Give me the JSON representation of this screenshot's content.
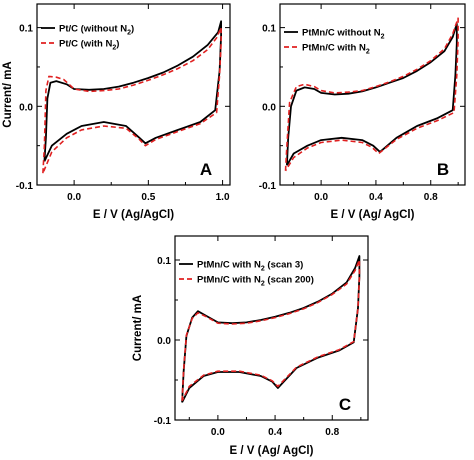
{
  "chart_data": [
    {
      "type": "line",
      "panel_letter": "A",
      "xlabel": "E / V (Ag/AgCl)",
      "ylabel": "Current/ mA",
      "xlim": [
        -0.25,
        1.05
      ],
      "ylim": [
        -0.1,
        0.13
      ],
      "xticks": [
        0.0,
        0.5,
        1.0
      ],
      "yticks": [
        -0.1,
        0.0,
        0.1
      ],
      "xtick_labels": [
        "0.0",
        "0.5",
        "1.0"
      ],
      "ytick_labels": [
        "-0.1",
        "0.0",
        "0.1"
      ],
      "legend_position": "top-left",
      "grid": false,
      "series": [
        {
          "name": "Pt/C (without N2)",
          "legend_main": "Pt/C (without N",
          "legend_sub": "2",
          "legend_tail": ")",
          "color": "#000000",
          "dash": "solid",
          "points": [
            [
              -0.2,
              -0.07
            ],
            [
              -0.19,
              -0.04
            ],
            [
              -0.18,
              0.01
            ],
            [
              -0.16,
              0.03
            ],
            [
              -0.12,
              0.032
            ],
            [
              -0.05,
              0.028
            ],
            [
              0.0,
              0.022
            ],
            [
              0.1,
              0.021
            ],
            [
              0.2,
              0.022
            ],
            [
              0.3,
              0.025
            ],
            [
              0.4,
              0.03
            ],
            [
              0.5,
              0.036
            ],
            [
              0.6,
              0.043
            ],
            [
              0.7,
              0.052
            ],
            [
              0.8,
              0.063
            ],
            [
              0.9,
              0.078
            ],
            [
              0.97,
              0.094
            ],
            [
              0.99,
              0.108
            ],
            [
              0.99,
              0.09
            ],
            [
              0.98,
              0.045
            ],
            [
              0.95,
              -0.005
            ],
            [
              0.85,
              -0.02
            ],
            [
              0.7,
              -0.03
            ],
            [
              0.55,
              -0.04
            ],
            [
              0.48,
              -0.047
            ],
            [
              0.44,
              -0.04
            ],
            [
              0.35,
              -0.025
            ],
            [
              0.2,
              -0.02
            ],
            [
              0.05,
              -0.025
            ],
            [
              -0.05,
              -0.035
            ],
            [
              -0.15,
              -0.05
            ],
            [
              -0.2,
              -0.07
            ]
          ]
        },
        {
          "name": "Pt/C (with N2)",
          "legend_main": "Pt/C (with N",
          "legend_sub": "2",
          "legend_tail": ")",
          "color": "#e02020",
          "dash": "dashed",
          "points": [
            [
              -0.21,
              -0.085
            ],
            [
              -0.2,
              -0.05
            ],
            [
              -0.19,
              0.02
            ],
            [
              -0.17,
              0.038
            ],
            [
              -0.12,
              0.037
            ],
            [
              -0.07,
              0.034
            ],
            [
              0.0,
              0.022
            ],
            [
              0.1,
              0.019
            ],
            [
              0.2,
              0.02
            ],
            [
              0.3,
              0.022
            ],
            [
              0.4,
              0.027
            ],
            [
              0.5,
              0.033
            ],
            [
              0.6,
              0.04
            ],
            [
              0.7,
              0.048
            ],
            [
              0.8,
              0.058
            ],
            [
              0.9,
              0.072
            ],
            [
              0.96,
              0.087
            ],
            [
              0.99,
              0.1
            ],
            [
              0.99,
              0.08
            ],
            [
              0.98,
              0.04
            ],
            [
              0.96,
              -0.008
            ],
            [
              0.85,
              -0.022
            ],
            [
              0.7,
              -0.032
            ],
            [
              0.55,
              -0.042
            ],
            [
              0.48,
              -0.05
            ],
            [
              0.44,
              -0.042
            ],
            [
              0.35,
              -0.028
            ],
            [
              0.2,
              -0.025
            ],
            [
              0.05,
              -0.03
            ],
            [
              -0.05,
              -0.04
            ],
            [
              -0.15,
              -0.058
            ],
            [
              -0.21,
              -0.085
            ]
          ]
        }
      ]
    },
    {
      "type": "line",
      "panel_letter": "B",
      "xlabel": "E / V (Ag/ AgCl)",
      "ylabel": "",
      "xlim": [
        -0.3,
        1.05
      ],
      "ylim": [
        -0.1,
        0.13
      ],
      "xticks": [
        0.0,
        0.4,
        0.8
      ],
      "yticks": [
        -0.1,
        0.0,
        0.1
      ],
      "xtick_labels": [
        "0.0",
        "0.4",
        "0.8"
      ],
      "ytick_labels": [
        "-0.1",
        "0.0",
        "0.1"
      ],
      "legend_position": "top-left",
      "grid": false,
      "series": [
        {
          "name": "PtMn/C without N2",
          "legend_main": "PtMn/C without N",
          "legend_sub": "2",
          "legend_tail": "",
          "color": "#000000",
          "dash": "solid",
          "points": [
            [
              -0.25,
              -0.075
            ],
            [
              -0.24,
              -0.04
            ],
            [
              -0.22,
              0.0
            ],
            [
              -0.18,
              0.02
            ],
            [
              -0.12,
              0.024
            ],
            [
              -0.05,
              0.022
            ],
            [
              0.0,
              0.017
            ],
            [
              0.1,
              0.015
            ],
            [
              0.2,
              0.016
            ],
            [
              0.3,
              0.019
            ],
            [
              0.4,
              0.024
            ],
            [
              0.5,
              0.03
            ],
            [
              0.6,
              0.036
            ],
            [
              0.7,
              0.045
            ],
            [
              0.8,
              0.056
            ],
            [
              0.9,
              0.07
            ],
            [
              0.96,
              0.088
            ],
            [
              0.99,
              0.105
            ],
            [
              0.99,
              0.08
            ],
            [
              0.98,
              0.04
            ],
            [
              0.96,
              -0.005
            ],
            [
              0.85,
              -0.015
            ],
            [
              0.7,
              -0.025
            ],
            [
              0.55,
              -0.04
            ],
            [
              0.43,
              -0.058
            ],
            [
              0.38,
              -0.05
            ],
            [
              0.3,
              -0.043
            ],
            [
              0.15,
              -0.04
            ],
            [
              0.0,
              -0.043
            ],
            [
              -0.1,
              -0.05
            ],
            [
              -0.2,
              -0.06
            ],
            [
              -0.25,
              -0.075
            ]
          ]
        },
        {
          "name": "PtMn/C with N2",
          "legend_main": "PtMn/C with N",
          "legend_sub": "2",
          "legend_tail": "",
          "color": "#e02020",
          "dash": "dashed",
          "points": [
            [
              -0.26,
              -0.082
            ],
            [
              -0.25,
              -0.05
            ],
            [
              -0.23,
              0.005
            ],
            [
              -0.18,
              0.025
            ],
            [
              -0.12,
              0.028
            ],
            [
              -0.05,
              0.025
            ],
            [
              0.0,
              0.02
            ],
            [
              0.1,
              0.017
            ],
            [
              0.2,
              0.018
            ],
            [
              0.3,
              0.02
            ],
            [
              0.4,
              0.025
            ],
            [
              0.5,
              0.031
            ],
            [
              0.6,
              0.038
            ],
            [
              0.7,
              0.047
            ],
            [
              0.8,
              0.058
            ],
            [
              0.9,
              0.073
            ],
            [
              0.96,
              0.092
            ],
            [
              1.0,
              0.112
            ],
            [
              1.0,
              0.085
            ],
            [
              0.99,
              0.04
            ],
            [
              0.97,
              -0.008
            ],
            [
              0.85,
              -0.018
            ],
            [
              0.7,
              -0.028
            ],
            [
              0.55,
              -0.042
            ],
            [
              0.42,
              -0.06
            ],
            [
              0.37,
              -0.052
            ],
            [
              0.3,
              -0.046
            ],
            [
              0.15,
              -0.043
            ],
            [
              0.0,
              -0.046
            ],
            [
              -0.1,
              -0.053
            ],
            [
              -0.2,
              -0.065
            ],
            [
              -0.26,
              -0.082
            ]
          ]
        }
      ]
    },
    {
      "type": "line",
      "panel_letter": "C",
      "xlabel": "E / V (Ag/ AgCl)",
      "ylabel": "Current/ mA",
      "xlim": [
        -0.3,
        1.05
      ],
      "ylim": [
        -0.1,
        0.13
      ],
      "xticks": [
        0.0,
        0.4,
        0.8
      ],
      "yticks": [
        -0.1,
        0.0,
        0.1
      ],
      "xtick_labels": [
        "0.0",
        "0.4",
        "0.8"
      ],
      "ytick_labels": [
        "-0.1",
        "0.0",
        "0.1"
      ],
      "legend_position": "top-left",
      "grid": false,
      "series": [
        {
          "name": "PtMn/C with N2 (scan 3)",
          "legend_main": "PtMn/C with N",
          "legend_sub": "2",
          "legend_tail": " (scan 3)",
          "color": "#000000",
          "dash": "solid",
          "points": [
            [
              -0.25,
              -0.078
            ],
            [
              -0.24,
              -0.04
            ],
            [
              -0.22,
              0.005
            ],
            [
              -0.18,
              0.028
            ],
            [
              -0.14,
              0.036
            ],
            [
              -0.08,
              0.03
            ],
            [
              0.0,
              0.022
            ],
            [
              0.1,
              0.021
            ],
            [
              0.2,
              0.022
            ],
            [
              0.3,
              0.025
            ],
            [
              0.4,
              0.029
            ],
            [
              0.5,
              0.034
            ],
            [
              0.6,
              0.04
            ],
            [
              0.7,
              0.048
            ],
            [
              0.8,
              0.058
            ],
            [
              0.9,
              0.072
            ],
            [
              0.96,
              0.09
            ],
            [
              0.99,
              0.105
            ],
            [
              0.99,
              0.08
            ],
            [
              0.98,
              0.04
            ],
            [
              0.95,
              -0.003
            ],
            [
              0.85,
              -0.013
            ],
            [
              0.7,
              -0.022
            ],
            [
              0.55,
              -0.035
            ],
            [
              0.42,
              -0.06
            ],
            [
              0.38,
              -0.052
            ],
            [
              0.3,
              -0.045
            ],
            [
              0.15,
              -0.04
            ],
            [
              0.0,
              -0.04
            ],
            [
              -0.1,
              -0.045
            ],
            [
              -0.2,
              -0.06
            ],
            [
              -0.25,
              -0.078
            ]
          ]
        },
        {
          "name": "PtMn/C with N2 (scan 200)",
          "legend_main": "PtMn/C with N",
          "legend_sub": "2",
          "legend_tail": " (scan 200)",
          "color": "#e02020",
          "dash": "dashed",
          "points": [
            [
              -0.25,
              -0.076
            ],
            [
              -0.24,
              -0.038
            ],
            [
              -0.22,
              0.006
            ],
            [
              -0.18,
              0.027
            ],
            [
              -0.14,
              0.034
            ],
            [
              -0.08,
              0.029
            ],
            [
              0.0,
              0.021
            ],
            [
              0.1,
              0.02
            ],
            [
              0.2,
              0.021
            ],
            [
              0.3,
              0.024
            ],
            [
              0.4,
              0.028
            ],
            [
              0.5,
              0.033
            ],
            [
              0.6,
              0.039
            ],
            [
              0.7,
              0.047
            ],
            [
              0.8,
              0.057
            ],
            [
              0.9,
              0.07
            ],
            [
              0.96,
              0.087
            ],
            [
              0.99,
              0.1
            ],
            [
              0.99,
              0.078
            ],
            [
              0.98,
              0.04
            ],
            [
              0.95,
              -0.002
            ],
            [
              0.85,
              -0.012
            ],
            [
              0.7,
              -0.021
            ],
            [
              0.55,
              -0.034
            ],
            [
              0.42,
              -0.058
            ],
            [
              0.38,
              -0.051
            ],
            [
              0.3,
              -0.044
            ],
            [
              0.15,
              -0.039
            ],
            [
              0.0,
              -0.039
            ],
            [
              -0.1,
              -0.044
            ],
            [
              -0.2,
              -0.058
            ],
            [
              -0.25,
              -0.076
            ]
          ]
        }
      ]
    }
  ]
}
